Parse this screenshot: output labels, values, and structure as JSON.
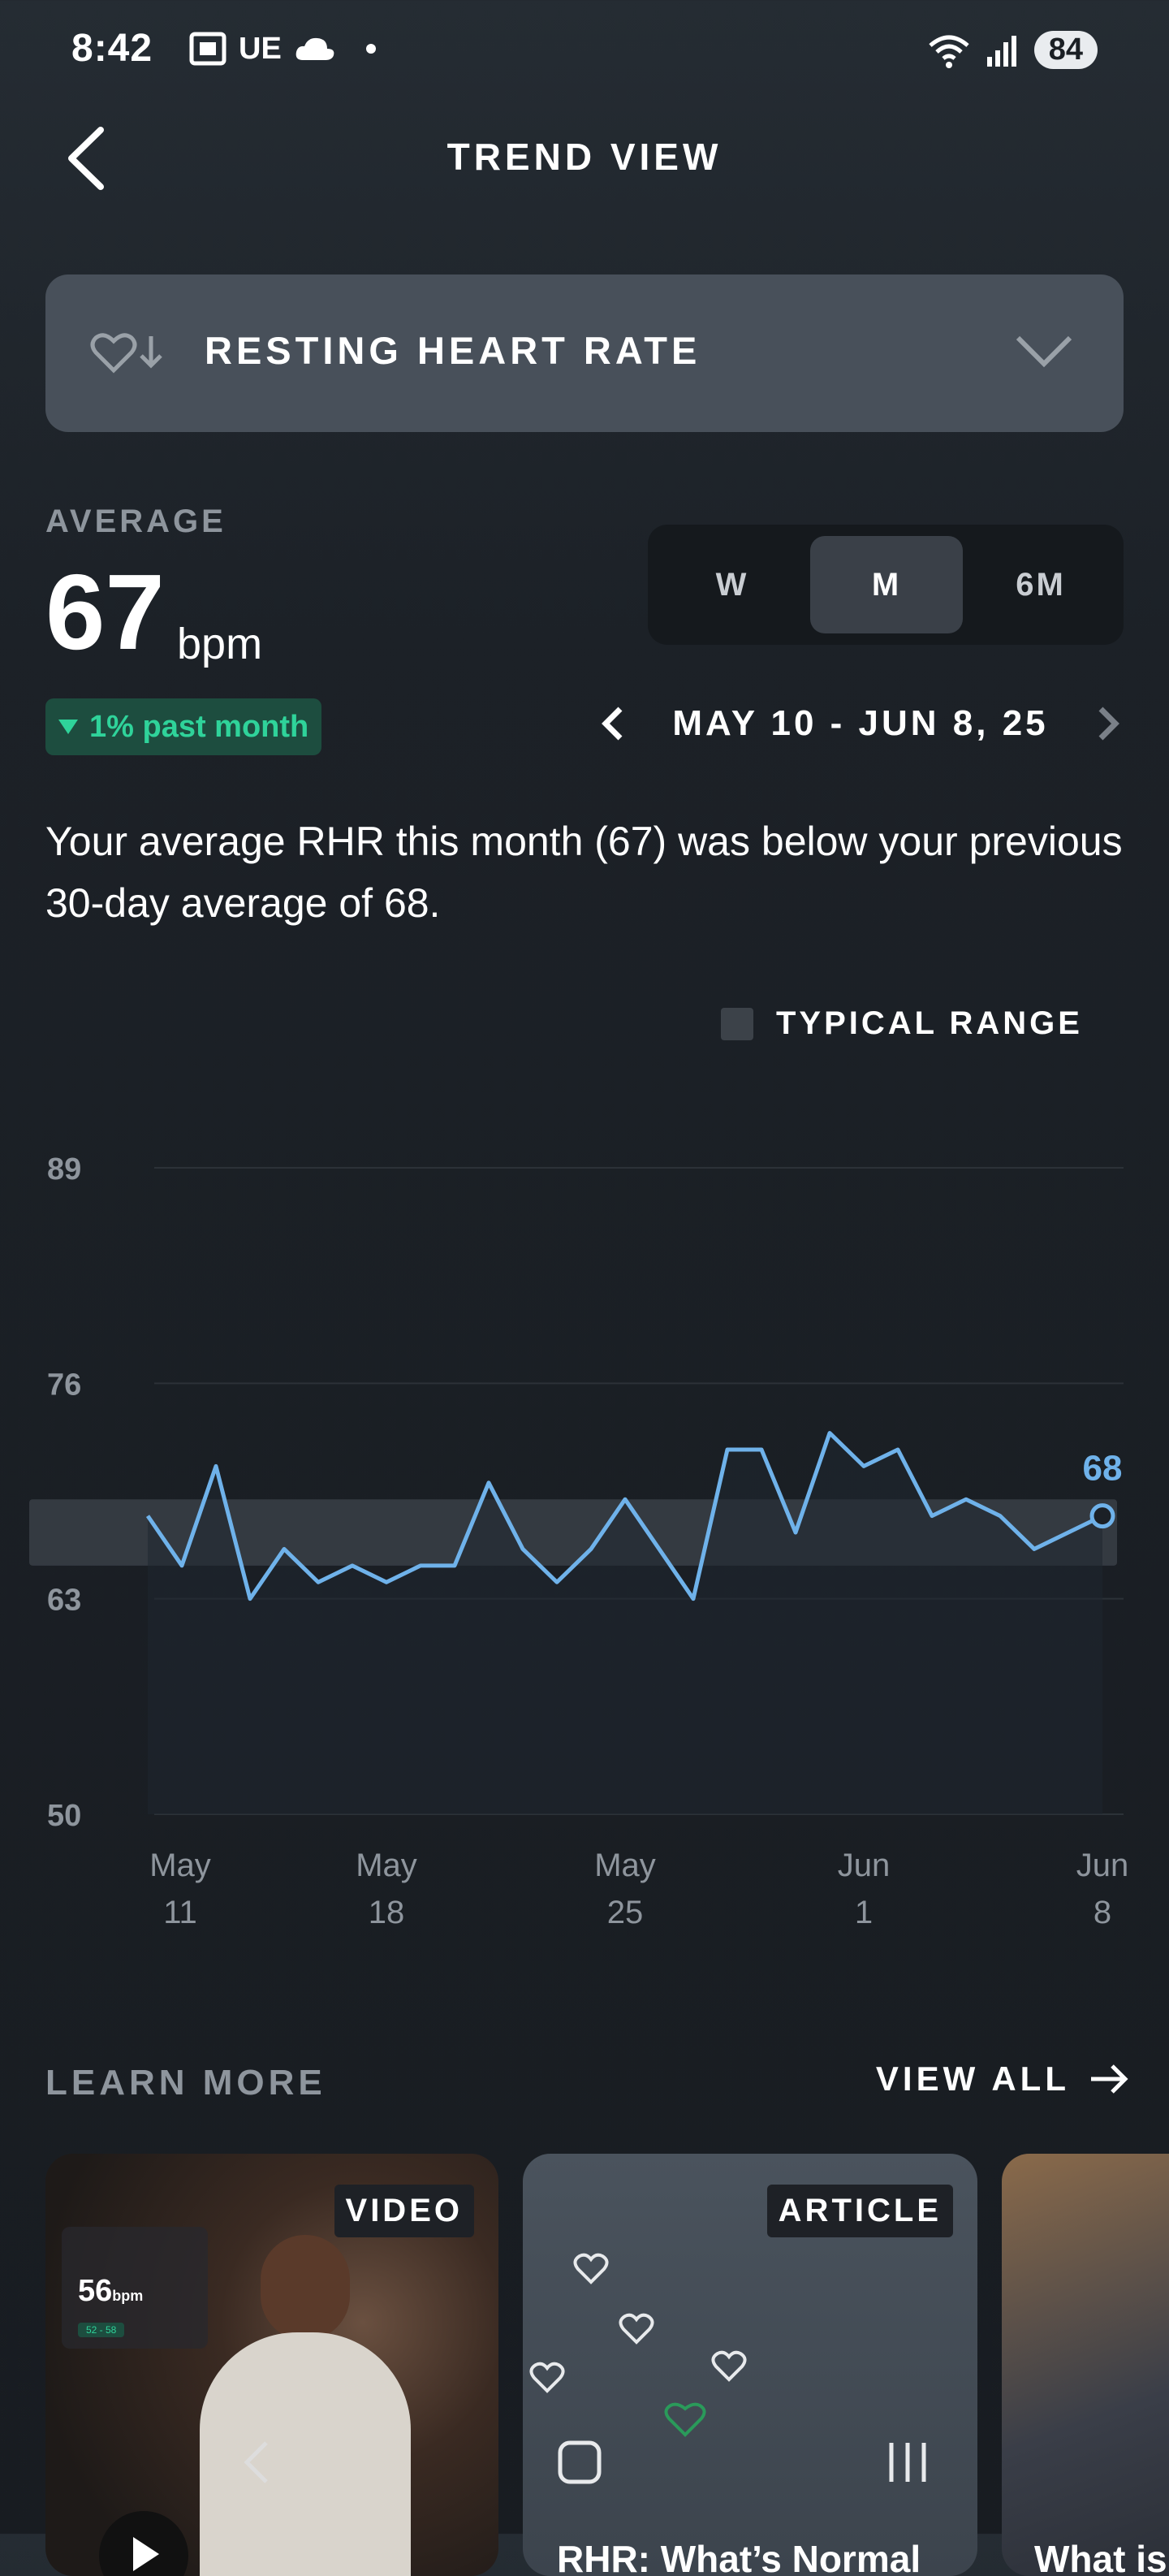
{
  "status_bar": {
    "time": "8:42",
    "carrier": "UE",
    "battery": "84"
  },
  "header": {
    "title": "TREND VIEW"
  },
  "metric_selector": {
    "label": "RESTING HEART RATE"
  },
  "average": {
    "label": "AVERAGE",
    "value": "67",
    "unit": "bpm",
    "change_text": "1% past month",
    "change_direction": "down"
  },
  "range_tabs": [
    {
      "label": "W",
      "active": false
    },
    {
      "label": "M",
      "active": true
    },
    {
      "label": "6M",
      "active": false
    }
  ],
  "date_range": "MAY 10 - JUN 8, 25",
  "summary": "Your average RHR this month (67) was below your previous 30-day average of 68.",
  "legend": {
    "typical_range": "TYPICAL RANGE"
  },
  "chart_data": {
    "type": "line",
    "y_ticks": [
      "89",
      "76",
      "63",
      "50"
    ],
    "ylim": [
      50,
      89
    ],
    "x_tick_labels": [
      [
        "May",
        "11"
      ],
      [
        "May",
        "18"
      ],
      [
        "May",
        "25"
      ],
      [
        "Jun",
        "1"
      ],
      [
        "Jun",
        "8"
      ]
    ],
    "typical_range": [
      65,
      69
    ],
    "values": [
      68,
      65,
      71,
      63,
      66,
      64,
      65,
      64,
      65,
      65,
      70,
      66,
      64,
      66,
      69,
      66,
      63,
      72,
      72,
      67,
      73,
      71,
      72,
      68,
      69,
      68,
      66,
      67,
      68
    ],
    "last_value_label": "68",
    "colors": {
      "line": "#6fb2ea",
      "band": "#3a4047",
      "grid": "#2c3238"
    }
  },
  "learn_more": {
    "title": "LEARN MORE",
    "view_all": "VIEW ALL",
    "cards": [
      {
        "tag": "VIDEO",
        "title": "",
        "overlay_value": "56",
        "overlay_unit": "bpm",
        "overlay_range": "52 - 58"
      },
      {
        "tag": "ARTICLE",
        "title": "RHR: What’s Normal"
      },
      {
        "tag": "",
        "title": "What is"
      }
    ]
  },
  "colors": {
    "accent_green": "#2fd39a",
    "line_blue": "#6fb2ea",
    "selector_bg": "#48505a"
  }
}
